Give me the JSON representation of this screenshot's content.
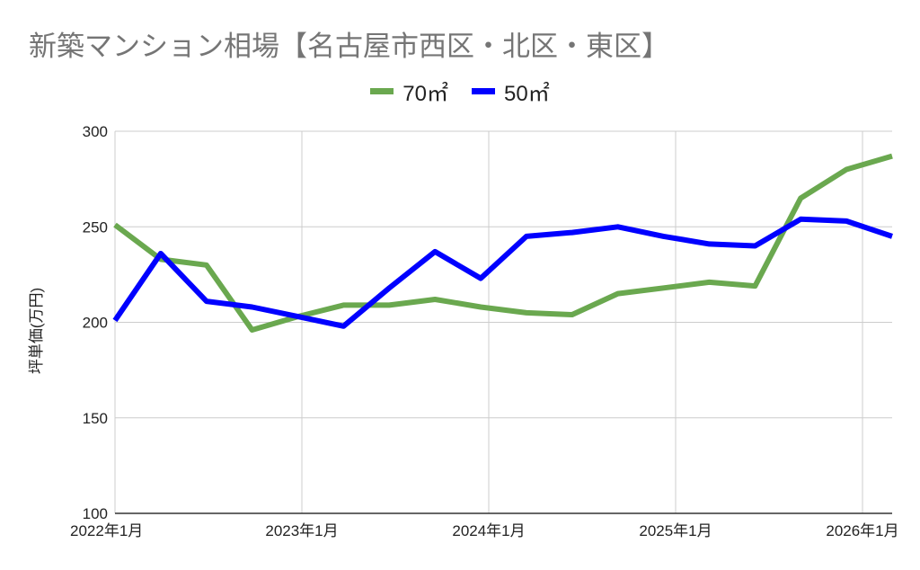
{
  "chart_data": {
    "type": "line",
    "title": "新築マンション相場【名古屋市西区・北区・東区】",
    "ylabel": "坪単価(万円)",
    "xlabel": "",
    "ylim": [
      100,
      300
    ],
    "yticks": [
      100,
      150,
      200,
      250,
      300
    ],
    "x_tick_labels": [
      "2022年1月",
      "2023年1月",
      "2024年1月",
      "2025年1月",
      "2026年1月"
    ],
    "grid": true,
    "legend_position": "top",
    "series": [
      {
        "name": "70㎡",
        "color": "#6aa84f",
        "values": [
          251,
          233,
          230,
          196,
          203,
          209,
          209,
          212,
          208,
          205,
          204,
          215,
          218,
          221,
          219,
          265,
          280,
          287
        ]
      },
      {
        "name": "50㎡",
        "color": "#0000ff",
        "values": [
          201,
          236,
          211,
          208,
          203,
          198,
          218,
          237,
          223,
          245,
          247,
          250,
          245,
          241,
          240,
          254,
          253,
          245
        ]
      }
    ]
  }
}
